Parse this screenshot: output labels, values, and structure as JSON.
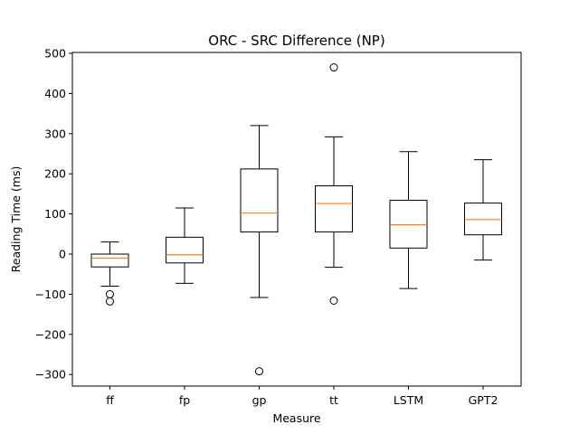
{
  "chart_data": {
    "type": "boxplot",
    "title": "ORC - SRC Difference (NP)",
    "xlabel": "Measure",
    "ylabel": "Reading Time (ms)",
    "ylim": [
      -330,
      500
    ],
    "yticks": [
      500,
      400,
      300,
      200,
      100,
      0,
      -100,
      -200,
      -300
    ],
    "ytick_labels": [
      "500",
      "400",
      "300",
      "200",
      "100",
      "0",
      "−100",
      "−200",
      "−300"
    ],
    "categories": [
      "ff",
      "fp",
      "gp",
      "tt",
      "LSTM",
      "GPT2"
    ],
    "boxes": [
      {
        "whisker_low": -80,
        "q1": -32,
        "median": -10,
        "q3": 0,
        "whisker_high": 30,
        "outliers": [
          -100,
          -118
        ]
      },
      {
        "whisker_low": -73,
        "q1": -22,
        "median": -2,
        "q3": 42,
        "whisker_high": 115,
        "outliers": []
      },
      {
        "whisker_low": -108,
        "q1": 55,
        "median": 102,
        "q3": 212,
        "whisker_high": 320,
        "outliers": [
          -292
        ]
      },
      {
        "whisker_low": -33,
        "q1": 55,
        "median": 126,
        "q3": 170,
        "whisker_high": 292,
        "outliers": [
          465,
          -116
        ]
      },
      {
        "whisker_low": -86,
        "q1": 15,
        "median": 73,
        "q3": 134,
        "whisker_high": 255,
        "outliers": []
      },
      {
        "whisker_low": -15,
        "q1": 48,
        "median": 86,
        "q3": 127,
        "whisker_high": 235,
        "outliers": []
      }
    ],
    "grid": false,
    "colors": {
      "box": "#000000",
      "median": "#ff7f0e",
      "outlier": "#000000",
      "axes": "#000000"
    }
  }
}
